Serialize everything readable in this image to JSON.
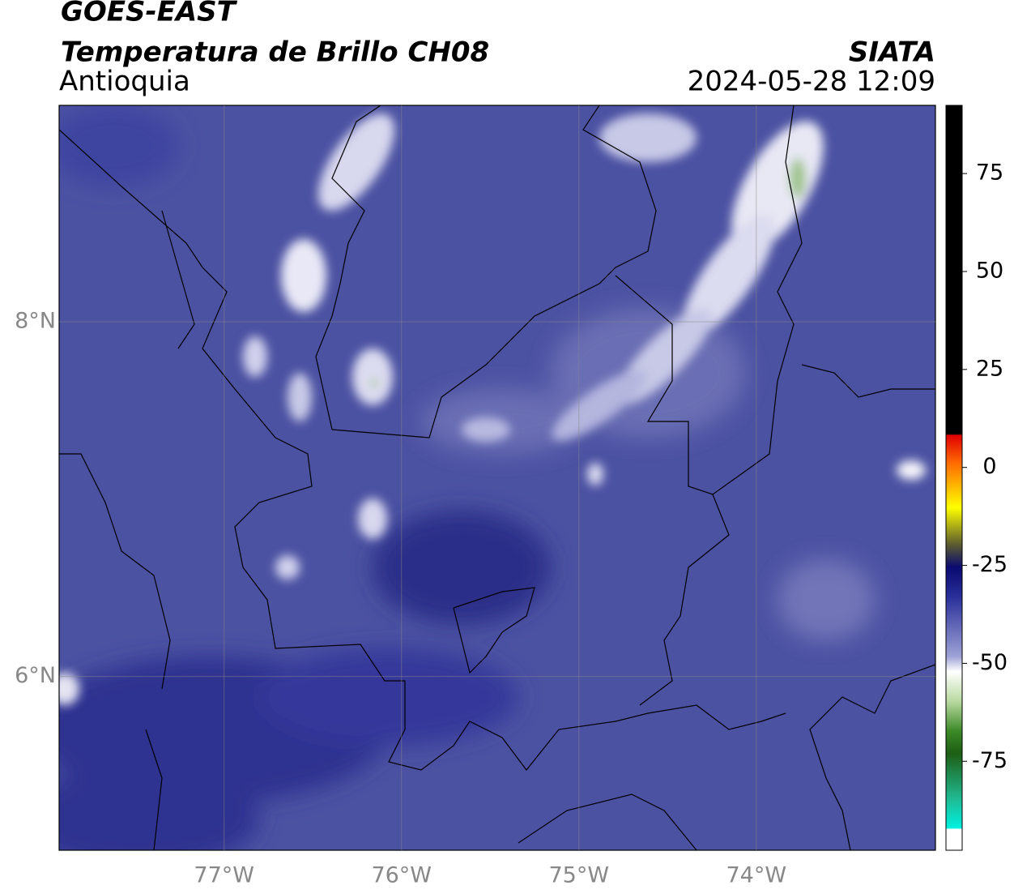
{
  "header": {
    "title": "GOES-EAST",
    "subtitle": "Temperatura de Brillo CH08",
    "region": "Antioquia",
    "source": "SIATA",
    "datetime": "2024-05-28 12:09"
  },
  "map": {
    "xlim": [
      -77.93,
      -72.99
    ],
    "ylim": [
      5.02,
      9.22
    ],
    "xticks": [
      {
        "value": -77,
        "label": "77°W"
      },
      {
        "value": -76,
        "label": "76°W"
      },
      {
        "value": -75,
        "label": "75°W"
      },
      {
        "value": -74,
        "label": "74°W"
      }
    ],
    "yticks": [
      {
        "value": 8,
        "label": "8°N"
      },
      {
        "value": 6,
        "label": "6°N"
      }
    ]
  },
  "colorbar": {
    "lim": [
      -97.7,
      92.4
    ],
    "ticks": [
      75,
      50,
      25,
      0,
      -25,
      -50,
      -75
    ]
  }
}
